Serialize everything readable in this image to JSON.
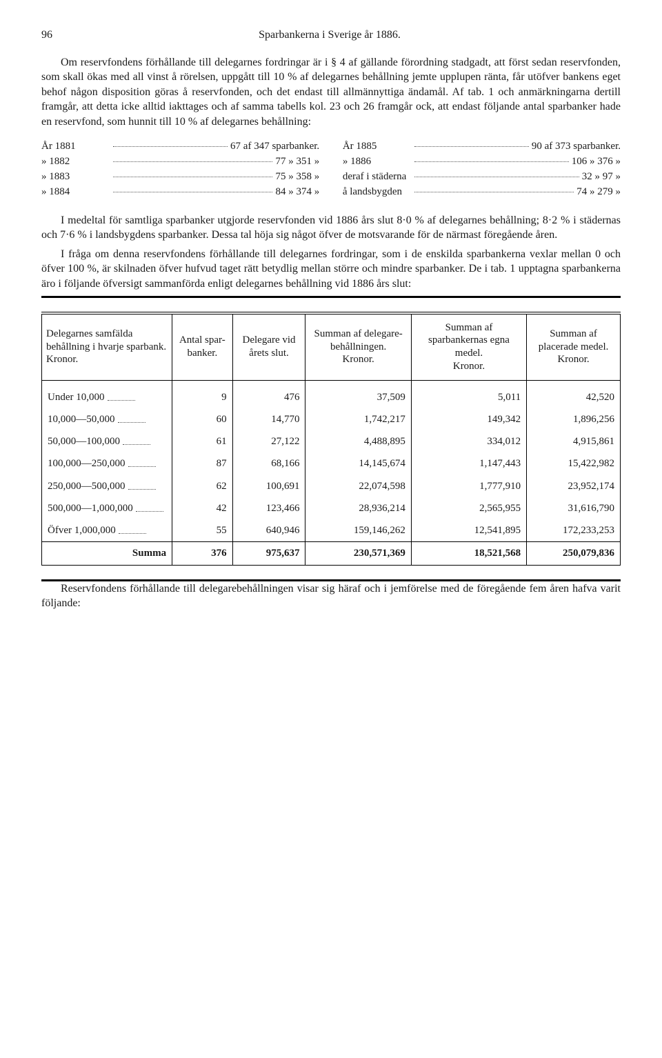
{
  "header": {
    "page_number": "96",
    "running_title": "Sparbankerna i Sverige år 1886."
  },
  "para1": "Om reservfondens förhållande till delegarnes fordringar är i § 4 af gällande förordning stadgadt, att först sedan reservfonden, som skall ökas med all vinst å rörelsen, uppgått till 10 % af delegarnes behållning jemte upplupen ränta, får utöfver bankens eget behof någon disposition göras å reservfonden, och det endast till allmännyttiga ändamål. Af tab. 1 och anmärkningarna dertill framgår, att detta icke alltid iakttages och af samma tabells kol. 23 och 26 framgår ock, att endast följande antal sparbanker hade en reservfond, som hunnit till 10 % af delegarnes behållning:",
  "years_left": [
    {
      "label": "År 1881",
      "value": "67 af 347 sparbanker."
    },
    {
      "label": "» 1882",
      "value": "77 » 351        »"
    },
    {
      "label": "» 1883",
      "value": "75 » 358        »"
    },
    {
      "label": "» 1884",
      "value": "84 » 374        »"
    }
  ],
  "years_right": [
    {
      "label": "År 1885",
      "value": "90 af 373 sparbanker."
    },
    {
      "label": "» 1886",
      "value": "106 » 376        »"
    },
    {
      "label": "deraf i städerna",
      "value": "32 »  97        »"
    },
    {
      "label": "å landsbygden",
      "value": "74 » 279        »"
    }
  ],
  "para2": "I medeltal för samtliga sparbanker utgjorde reservfonden vid 1886 års slut 8·0 % af delegarnes behållning; 8·2 % i städernas och 7·6 % i landsbygdens sparbanker. Dessa tal höja sig något öfver de motsvarande för de närmast föregående åren.",
  "para3": "I fråga om denna reservfondens förhållande till delegarnes fordringar, som i de enskilda sparbankerna vexlar mellan 0 och öfver 100 %, är skilnaden öfver hufvud taget rätt betydlig mellan större och mindre sparbanker. De i tab. 1 upptagna sparbankerna äro i följande öfversigt sammanförda enligt delegarnes behållning vid 1886 års slut:",
  "table": {
    "columns": [
      "Delegarnes samfälda behållning i hvarje sparbank.\nKronor.",
      "Antal spar-banker.",
      "Delegare vid årets slut.",
      "Summan af delegare-behållningen.\nKronor.",
      "Summan af sparbankernas egna medel.\nKronor.",
      "Summan af placerade medel.\nKronor."
    ],
    "rows": [
      [
        "Under 10,000",
        "9",
        "476",
        "37,509",
        "5,011",
        "42,520"
      ],
      [
        "10,000—50,000",
        "60",
        "14,770",
        "1,742,217",
        "149,342",
        "1,896,256"
      ],
      [
        "50,000—100,000",
        "61",
        "27,122",
        "4,488,895",
        "334,012",
        "4,915,861"
      ],
      [
        "100,000—250,000",
        "87",
        "68,166",
        "14,145,674",
        "1,147,443",
        "15,422,982"
      ],
      [
        "250,000—500,000",
        "62",
        "100,691",
        "22,074,598",
        "1,777,910",
        "23,952,174"
      ],
      [
        "500,000—1,000,000",
        "42",
        "123,466",
        "28,936,214",
        "2,565,955",
        "31,616,790"
      ],
      [
        "Öfver 1,000,000",
        "55",
        "640,946",
        "159,146,262",
        "12,541,895",
        "172,233,253"
      ]
    ],
    "sum": [
      "Summa",
      "376",
      "975,637",
      "230,571,369",
      "18,521,568",
      "250,079,836"
    ]
  },
  "para4": "Reservfondens förhållande till delegarebehållningen visar sig häraf och i jemförelse med de föregående fem åren hafva varit följande:"
}
